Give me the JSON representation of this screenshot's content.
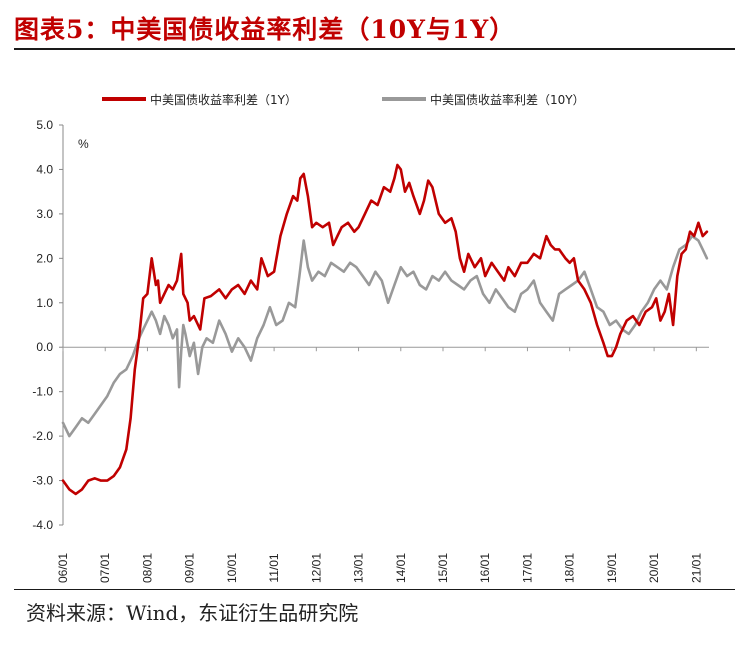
{
  "title": "图表5：中美国债收益率利差（10Y与1Y）",
  "source": "资料来源：Wind，东证衍生品研究院",
  "chart_data": {
    "type": "line",
    "unit_label": "%",
    "ylim": [
      -4.0,
      5.0
    ],
    "yticks": [
      "5.0",
      "4.0",
      "3.0",
      "2.0",
      "1.0",
      "0.0",
      "-1.0",
      "-2.0",
      "-3.0",
      "-4.0"
    ],
    "xlim": [
      2006.0,
      2021.3
    ],
    "xticks": [
      "06/01",
      "07/01",
      "08/01",
      "09/01",
      "10/01",
      "11/01",
      "12/01",
      "13/01",
      "14/01",
      "15/01",
      "16/01",
      "17/01",
      "18/01",
      "19/01",
      "20/01",
      "21/01"
    ],
    "legend_position": "top",
    "grid": false,
    "series": [
      {
        "name": "中美国债收益率利差（1Y）",
        "color": "#c00000",
        "x": [
          2006.0,
          2006.15,
          2006.3,
          2006.45,
          2006.6,
          2006.75,
          2006.9,
          2007.05,
          2007.2,
          2007.35,
          2007.5,
          2007.6,
          2007.7,
          2007.8,
          2007.9,
          2008.0,
          2008.1,
          2008.2,
          2008.25,
          2008.3,
          2008.4,
          2008.5,
          2008.6,
          2008.7,
          2008.8,
          2008.85,
          2008.9,
          2008.95,
          2009.0,
          2009.1,
          2009.2,
          2009.25,
          2009.35,
          2009.5,
          2009.7,
          2009.85,
          2010.0,
          2010.15,
          2010.3,
          2010.45,
          2010.6,
          2010.7,
          2010.85,
          2011.0,
          2011.15,
          2011.3,
          2011.45,
          2011.55,
          2011.62,
          2011.7,
          2011.8,
          2011.9,
          2012.0,
          2012.15,
          2012.3,
          2012.4,
          2012.5,
          2012.6,
          2012.75,
          2012.9,
          2013.0,
          2013.15,
          2013.3,
          2013.45,
          2013.6,
          2013.75,
          2013.85,
          2013.92,
          2014.0,
          2014.1,
          2014.2,
          2014.3,
          2014.45,
          2014.55,
          2014.65,
          2014.75,
          2014.9,
          2015.05,
          2015.2,
          2015.3,
          2015.4,
          2015.5,
          2015.6,
          2015.75,
          2015.9,
          2016.0,
          2016.15,
          2016.3,
          2016.45,
          2016.55,
          2016.7,
          2016.85,
          2017.0,
          2017.15,
          2017.3,
          2017.45,
          2017.55,
          2017.65,
          2017.75,
          2017.9,
          2018.0,
          2018.1,
          2018.2,
          2018.35,
          2018.5,
          2018.65,
          2018.8,
          2018.9,
          2019.0,
          2019.1,
          2019.2,
          2019.35,
          2019.5,
          2019.65,
          2019.8,
          2019.95,
          2020.05,
          2020.15,
          2020.25,
          2020.35,
          2020.45,
          2020.55,
          2020.65,
          2020.75,
          2020.85,
          2020.95,
          2021.05,
          2021.15,
          2021.25
        ],
        "values": [
          -3.0,
          -3.2,
          -3.3,
          -3.2,
          -3.0,
          -2.95,
          -3.0,
          -3.0,
          -2.9,
          -2.7,
          -2.3,
          -1.6,
          -0.5,
          0.2,
          1.1,
          1.2,
          2.0,
          1.4,
          1.5,
          1.0,
          1.2,
          1.4,
          1.3,
          1.5,
          2.1,
          1.2,
          1.1,
          1.0,
          0.6,
          0.7,
          0.5,
          0.4,
          1.1,
          1.15,
          1.3,
          1.1,
          1.3,
          1.4,
          1.2,
          1.5,
          1.3,
          2.0,
          1.6,
          1.7,
          2.5,
          3.0,
          3.4,
          3.3,
          3.8,
          3.9,
          3.4,
          2.7,
          2.8,
          2.7,
          2.8,
          2.3,
          2.5,
          2.7,
          2.8,
          2.6,
          2.7,
          3.0,
          3.3,
          3.2,
          3.6,
          3.5,
          3.8,
          4.1,
          4.0,
          3.5,
          3.7,
          3.4,
          3.0,
          3.3,
          3.75,
          3.6,
          3.0,
          2.8,
          2.9,
          2.6,
          2.0,
          1.7,
          2.1,
          1.8,
          2.0,
          1.6,
          1.9,
          1.7,
          1.5,
          1.8,
          1.6,
          1.9,
          1.9,
          2.1,
          2.0,
          2.5,
          2.3,
          2.2,
          2.2,
          2.0,
          1.9,
          2.0,
          1.5,
          1.3,
          1.0,
          0.5,
          0.1,
          -0.2,
          -0.2,
          0.0,
          0.3,
          0.6,
          0.7,
          0.5,
          0.8,
          0.9,
          1.1,
          0.6,
          0.8,
          1.2,
          0.5,
          1.6,
          2.1,
          2.2,
          2.6,
          2.5,
          2.8,
          2.5,
          2.6
        ]
      },
      {
        "name": "中美国债收益率利差（10Y）",
        "color": "#999999",
        "x": [
          2006.0,
          2006.15,
          2006.3,
          2006.45,
          2006.6,
          2006.75,
          2006.9,
          2007.05,
          2007.2,
          2007.35,
          2007.5,
          2007.65,
          2007.8,
          2007.95,
          2008.1,
          2008.2,
          2008.3,
          2008.4,
          2008.5,
          2008.6,
          2008.7,
          2008.75,
          2008.8,
          2008.85,
          2008.9,
          2009.0,
          2009.1,
          2009.2,
          2009.3,
          2009.4,
          2009.55,
          2009.7,
          2009.85,
          2010.0,
          2010.15,
          2010.3,
          2010.45,
          2010.6,
          2010.75,
          2010.9,
          2011.05,
          2011.2,
          2011.35,
          2011.5,
          2011.6,
          2011.7,
          2011.8,
          2011.9,
          2012.05,
          2012.2,
          2012.35,
          2012.5,
          2012.65,
          2012.8,
          2012.95,
          2013.1,
          2013.25,
          2013.4,
          2013.55,
          2013.7,
          2013.85,
          2014.0,
          2014.15,
          2014.3,
          2014.45,
          2014.6,
          2014.75,
          2014.9,
          2015.05,
          2015.2,
          2015.35,
          2015.5,
          2015.65,
          2015.8,
          2015.95,
          2016.1,
          2016.25,
          2016.4,
          2016.55,
          2016.7,
          2016.85,
          2017.0,
          2017.15,
          2017.3,
          2017.45,
          2017.6,
          2017.75,
          2017.9,
          2018.05,
          2018.2,
          2018.35,
          2018.5,
          2018.65,
          2018.8,
          2018.95,
          2019.1,
          2019.25,
          2019.4,
          2019.55,
          2019.7,
          2019.85,
          2020.0,
          2020.15,
          2020.3,
          2020.45,
          2020.6,
          2020.75,
          2020.9,
          2021.05,
          2021.15,
          2021.25
        ],
        "values": [
          -1.7,
          -2.0,
          -1.8,
          -1.6,
          -1.7,
          -1.5,
          -1.3,
          -1.1,
          -0.8,
          -0.6,
          -0.5,
          -0.2,
          0.2,
          0.5,
          0.8,
          0.6,
          0.3,
          0.7,
          0.5,
          0.2,
          0.4,
          -0.9,
          -0.1,
          0.5,
          0.3,
          -0.2,
          0.1,
          -0.6,
          0.0,
          0.2,
          0.1,
          0.6,
          0.3,
          -0.1,
          0.2,
          0.0,
          -0.3,
          0.2,
          0.5,
          0.9,
          0.5,
          0.6,
          1.0,
          0.9,
          1.6,
          2.4,
          1.8,
          1.5,
          1.7,
          1.6,
          1.9,
          1.8,
          1.7,
          1.9,
          1.8,
          1.6,
          1.4,
          1.7,
          1.5,
          1.0,
          1.4,
          1.8,
          1.6,
          1.7,
          1.4,
          1.3,
          1.6,
          1.5,
          1.7,
          1.5,
          1.4,
          1.3,
          1.5,
          1.6,
          1.2,
          1.0,
          1.3,
          1.1,
          0.9,
          0.8,
          1.2,
          1.3,
          1.5,
          1.0,
          0.8,
          0.6,
          1.2,
          1.3,
          1.4,
          1.5,
          1.7,
          1.3,
          0.9,
          0.8,
          0.5,
          0.6,
          0.4,
          0.3,
          0.5,
          0.8,
          1.0,
          1.3,
          1.5,
          1.3,
          1.8,
          2.2,
          2.3,
          2.5,
          2.4,
          2.2,
          2.0
        ]
      }
    ]
  }
}
